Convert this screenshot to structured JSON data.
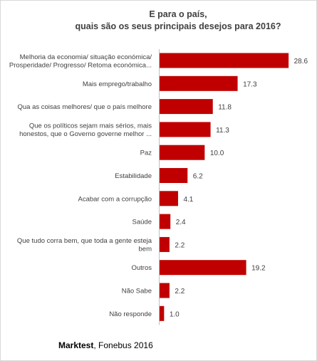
{
  "chart_data": {
    "type": "bar",
    "orientation": "horizontal",
    "title_lines": [
      "E para o país,",
      "quais são os seus principais desejos para 2016?"
    ],
    "categories": [
      [
        "Melhoria da economia/ situação económica/",
        "Prosperidade/ Progresso/ Retoma económica..."
      ],
      [
        "Mais emprego/trabalho"
      ],
      [
        "Qua as coisas melhores/ que o país melhore"
      ],
      [
        "Que os políticos sejam mais sérios, mais",
        "honestos, que o Governo governe melhor ..."
      ],
      [
        "Paz"
      ],
      [
        "Estabilidade"
      ],
      [
        "Acabar com a corrupção"
      ],
      [
        "Saúde"
      ],
      [
        "Que tudo corra bem, que toda a gente esteja",
        "bem"
      ],
      [
        "Outros"
      ],
      [
        "Não Sabe"
      ],
      [
        "Não responde"
      ]
    ],
    "values": [
      28.6,
      17.3,
      11.8,
      11.3,
      10.0,
      6.2,
      4.1,
      2.4,
      2.2,
      19.2,
      2.2,
      1.0
    ],
    "value_labels": [
      "28.6",
      "17.3",
      "11.8",
      "11.3",
      "10.0",
      "6.2",
      "4.1",
      "2.4",
      "2.2",
      "19.2",
      "2.2",
      "1.0"
    ],
    "xlim": [
      0,
      30
    ],
    "grid": false,
    "bar_color": "#c00000"
  },
  "source": {
    "brand": "Marktest",
    "rest": ", Fonebus 2016"
  }
}
